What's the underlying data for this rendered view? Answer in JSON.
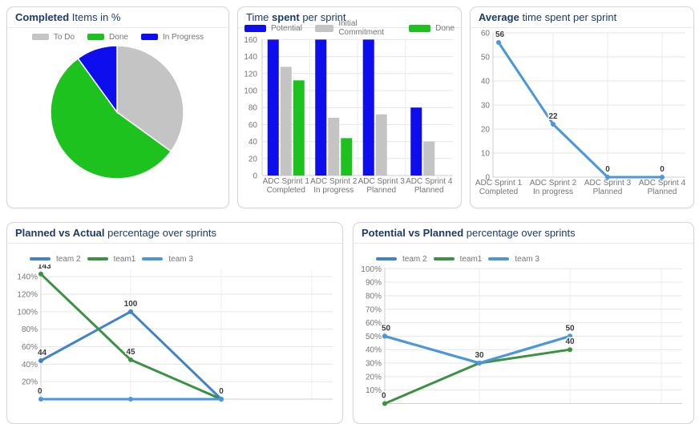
{
  "page": {
    "background": "#ffffff"
  },
  "colors": {
    "title_text": "#1c3b66",
    "axis_text": "#757575",
    "annotation_text": "#3c3c3c",
    "gridline": "#e6e6e6",
    "axis_line": "#cfcfcf",
    "card_border": "#d6d6d6",
    "header_divider": "#e9e9e9"
  },
  "chart_data": [
    {
      "id": "completed-items",
      "type": "pie",
      "title_pre": "",
      "title_bold": "Completed",
      "title_post": " Items in %",
      "labels": [
        "To Do",
        "Done",
        "In Progress"
      ],
      "values": [
        35,
        55,
        10
      ],
      "unit": "%",
      "colors": [
        "#c4c4c4",
        "#1ec21e",
        "#0d0dee"
      ],
      "legend_position": "top"
    },
    {
      "id": "time-spent",
      "type": "bar",
      "title_pre": "Time ",
      "title_bold": "spent",
      "title_post": " per sprint",
      "categories": [
        [
          "ADC Sprint 1",
          "Completed"
        ],
        [
          "ADC Sprint 2",
          "In progress"
        ],
        [
          "ADC Sprint 3",
          "Planned"
        ],
        [
          "ADC Sprint 4",
          "Planned"
        ]
      ],
      "series": [
        {
          "name": "Potential",
          "color": "#0d0dee",
          "values": [
            160,
            160,
            160,
            80
          ]
        },
        {
          "name": "Initial Commitment",
          "color": "#c4c4c4",
          "values": [
            128,
            68,
            72,
            40
          ]
        },
        {
          "name": "Done",
          "color": "#1ec21e",
          "values": [
            112,
            44,
            0,
            0
          ]
        }
      ],
      "ylim": [
        0,
        160
      ],
      "yticks": [
        0,
        20,
        40,
        60,
        80,
        100,
        120,
        140,
        160
      ],
      "y_suffix": "",
      "grid": true,
      "legend_position": "top"
    },
    {
      "id": "average-time",
      "type": "line",
      "title_pre": "",
      "title_bold": "Average",
      "title_post": " time spent per sprint",
      "categories": [
        [
          "ADC Sprint 1",
          "Completed"
        ],
        [
          "ADC Sprint 2",
          "In progress"
        ],
        [
          "ADC Sprint 3",
          "Planned"
        ],
        [
          "ADC Sprint 4",
          "Planned"
        ]
      ],
      "series": [
        {
          "name": "",
          "color": "#4a97d9",
          "values": [
            56,
            22,
            0,
            0
          ],
          "point_labels": [
            "56",
            "22",
            "0",
            "0"
          ]
        }
      ],
      "ylim": [
        0,
        60
      ],
      "yticks": [
        0,
        10,
        20,
        30,
        40,
        50,
        60
      ],
      "y_suffix": "",
      "grid": true,
      "legend_position": "none"
    },
    {
      "id": "planned-vs-actual",
      "type": "line",
      "title_pre": "",
      "title_bold": "Planned vs Actual",
      "title_post": " percentage over sprints",
      "series": [
        {
          "name": "team 2",
          "color": "#3f83c9",
          "values": [
            44,
            100,
            0
          ],
          "point_labels": [
            "44",
            "100",
            "0"
          ]
        },
        {
          "name": "team1",
          "color": "#3c9142",
          "values": [
            143,
            45,
            0
          ],
          "point_labels": [
            "143",
            "45",
            ""
          ]
        },
        {
          "name": "team 3",
          "color": "#4a97d9",
          "values": [
            0,
            0,
            0
          ],
          "point_labels": [
            "0",
            "",
            ""
          ]
        }
      ],
      "ylim": [
        0,
        145
      ],
      "yticks": [
        20,
        40,
        60,
        80,
        100,
        120,
        140
      ],
      "y_suffix": "%",
      "grid": true,
      "legend_position": "top"
    },
    {
      "id": "potential-vs-planned",
      "type": "line",
      "title_pre": "",
      "title_bold": "Potential vs Planned",
      "title_post": " percentage over sprints",
      "series": [
        {
          "name": "team 2",
          "color": "#3f83c9",
          "values": [
            50,
            30,
            50
          ],
          "point_labels": [
            "50",
            "30",
            "50"
          ]
        },
        {
          "name": "team1",
          "color": "#3c9142",
          "values": [
            0,
            30,
            40
          ],
          "point_labels": [
            "0",
            "",
            "40"
          ]
        },
        {
          "name": "team 3",
          "color": "#4a97d9",
          "values": [
            50,
            30,
            50
          ],
          "point_labels": [
            "",
            "",
            ""
          ]
        }
      ],
      "ylim": [
        0,
        105
      ],
      "yticks": [
        10,
        20,
        30,
        40,
        50,
        60,
        70,
        80,
        90,
        100
      ],
      "y_suffix": "%",
      "grid": true,
      "legend_position": "top"
    }
  ]
}
